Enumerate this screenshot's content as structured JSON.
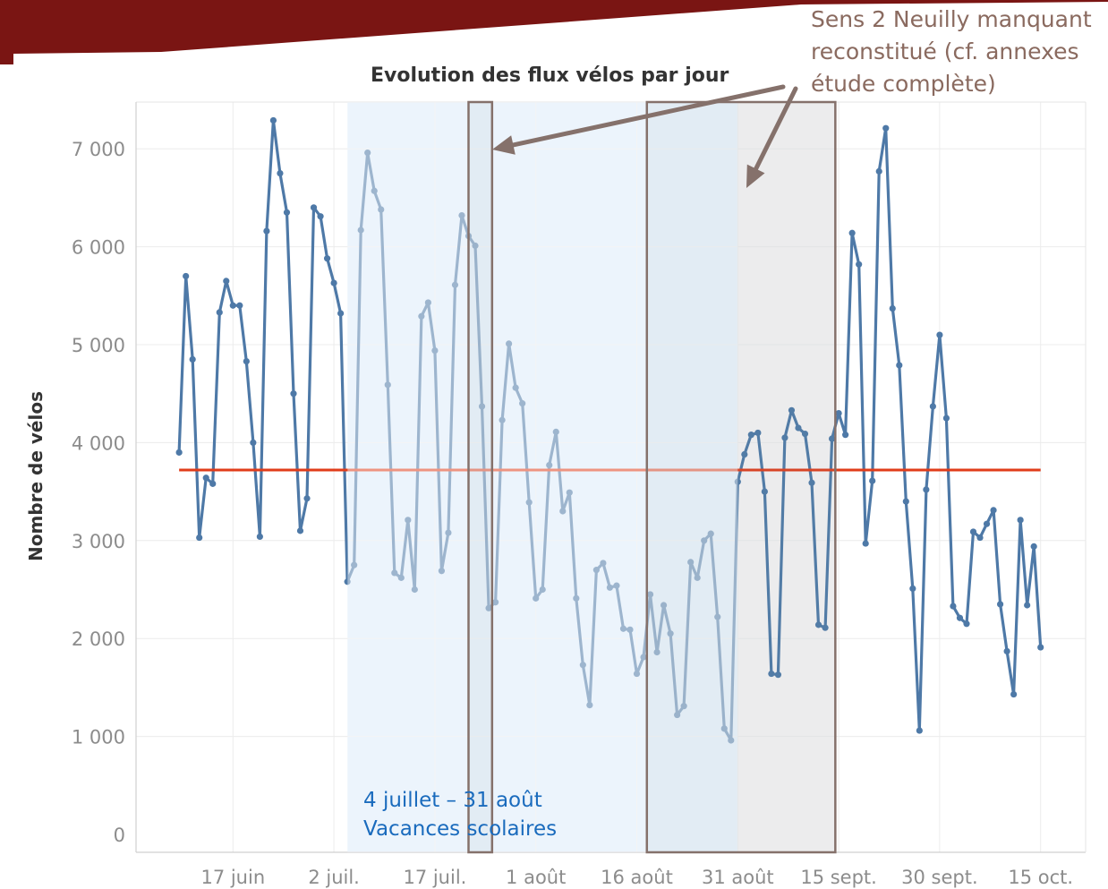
{
  "annotations": {
    "top_note_lines": [
      "Sens 2 Neuilly manquant",
      "reconstitué (cf. annexes",
      "étude complète)"
    ],
    "vacation_lines": [
      "4 juillet – 31 août",
      "Vacances scolaires"
    ]
  },
  "colors": {
    "banner": "#7a1513",
    "series_line": "#4e79a7",
    "series_line_faded": "#9dbddd",
    "average_line": "#e03c1a",
    "vacation_band": "#dcebfa",
    "missing_band": "#f7f4f5",
    "box_outline": "#85716b",
    "grid": "#ececec"
  },
  "chart_data": {
    "type": "line",
    "title": "Evolution des flux vélos par jour",
    "xlabel": "",
    "ylabel": "Nombre de vélos",
    "ylim": [
      0,
      7500
    ],
    "yticks": [
      0,
      1000,
      2000,
      3000,
      4000,
      5000,
      6000,
      7000
    ],
    "ytick_labels": [
      "0",
      "1 000",
      "2 000",
      "3 000",
      "4 000",
      "5 000",
      "6 000",
      "7 000"
    ],
    "xtick_labels": [
      "17 juin",
      "2 juil.",
      "17 juil.",
      "1 août",
      "16 août",
      "31 août",
      "15 sept.",
      "30 sept.",
      "15 oct."
    ],
    "xtick_days": [
      15,
      30,
      45,
      60,
      75,
      90,
      105,
      120,
      135
    ],
    "x_start_day": 7,
    "x_end_day": 135,
    "grid": true,
    "average": 3720,
    "vacation_range_days": [
      32,
      90
    ],
    "missing_range_days": [
      90,
      104.5
    ],
    "boxes_days": [
      [
        50,
        53.5
      ],
      [
        76.5,
        104.5
      ]
    ],
    "series": [
      {
        "values": [
          3900,
          5700,
          4850,
          3030,
          3640,
          3580,
          5330,
          5650,
          5400,
          5400,
          4830,
          4000,
          3040,
          6160,
          7290,
          6750,
          6350,
          4500,
          3100,
          3430,
          6400,
          6310,
          5880,
          5630,
          5320,
          2580,
          2750,
          6170,
          6960,
          6570,
          6380,
          4590,
          2670,
          2620,
          3210,
          2500,
          5290,
          5430,
          4940,
          2690,
          3080,
          5610,
          6320,
          6110,
          6010,
          4370,
          2310,
          2370,
          4230,
          5010,
          4560,
          4400,
          3390,
          2410,
          2500,
          3770,
          4110,
          3300,
          3490,
          2410,
          1730,
          1320,
          2700,
          2770,
          2520,
          2540,
          2100,
          2090,
          1640,
          1810,
          2450,
          1860,
          2340,
          2050,
          1220,
          1310,
          2780,
          2620,
          3000,
          3070,
          2220,
          1080,
          960,
          3600,
          3880,
          4080,
          4100,
          3500,
          1640,
          1630,
          4050,
          4330,
          4150,
          4090,
          3590,
          2140,
          2110,
          4040,
          4300,
          4080,
          6140,
          5820,
          2970,
          3610,
          6770,
          7210,
          5370,
          4790,
          3400,
          2510,
          1060,
          3520,
          4370,
          5100,
          4250,
          2330,
          2210,
          2150,
          3090,
          3030,
          3170,
          3310,
          2350,
          1870,
          1430,
          3210,
          2340,
          2940,
          1910
        ]
      }
    ]
  }
}
